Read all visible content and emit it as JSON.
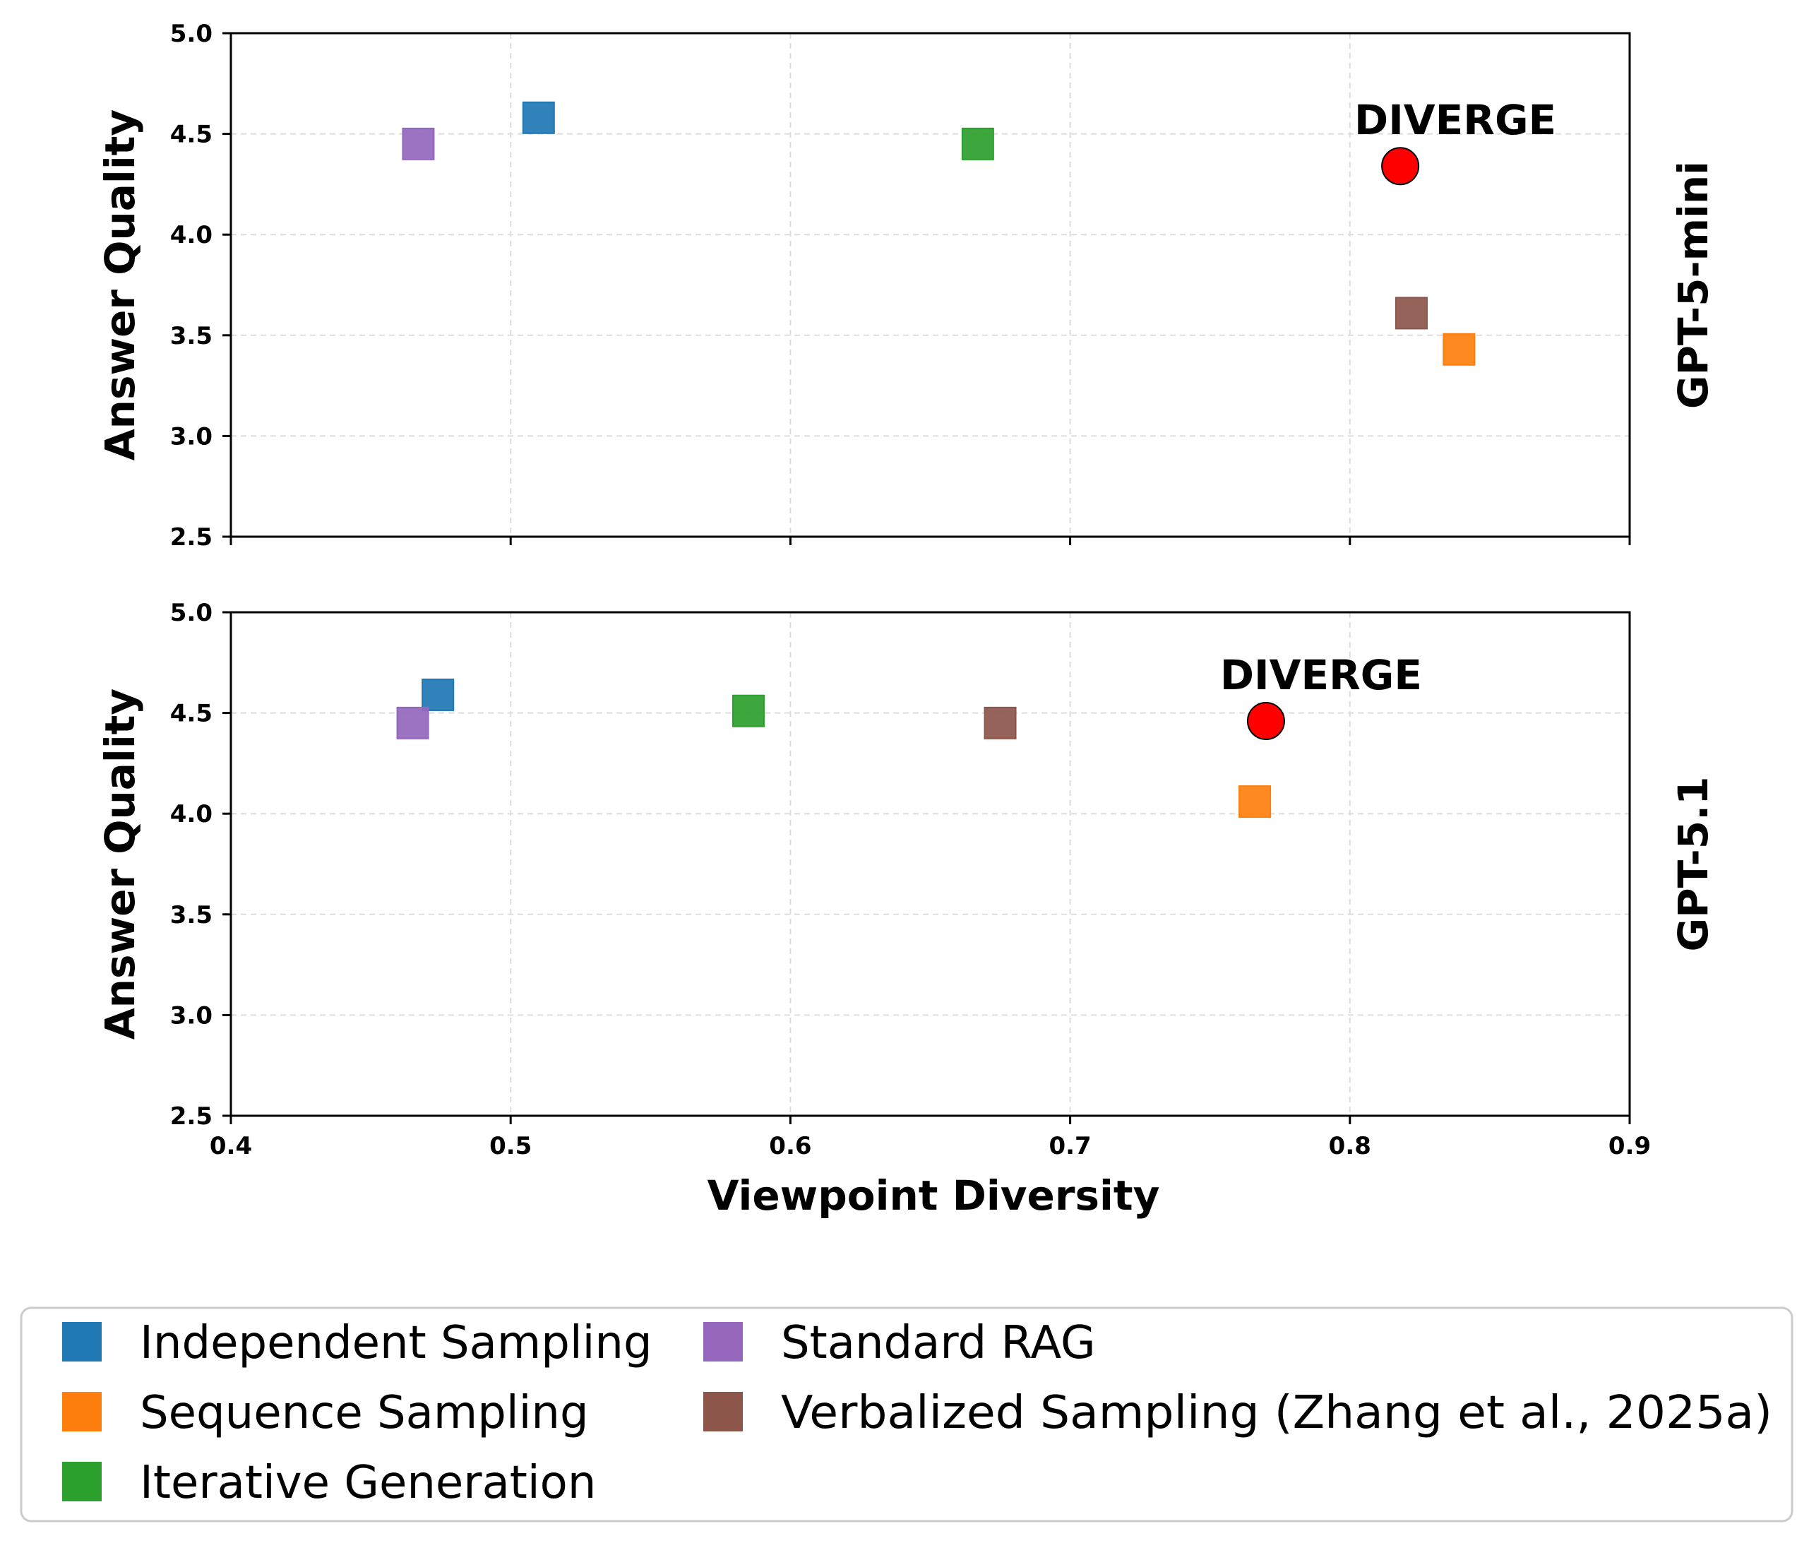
{
  "chart_data": {
    "type": "scatter",
    "xlabel": "Viewpoint Diversity",
    "ylabel": "Answer Quality",
    "xlim": [
      0.4,
      0.9
    ],
    "ylim": [
      2.5,
      5.0
    ],
    "x_ticks": [
      "0.4",
      "0.5",
      "0.6",
      "0.7",
      "0.8",
      "0.9"
    ],
    "y_ticks": [
      "2.5",
      "3.0",
      "3.5",
      "4.0",
      "4.5",
      "5.0"
    ],
    "grid": true,
    "legend_position": "bottom",
    "legend": [
      {
        "name": "Independent Sampling",
        "color": "#1f77b4"
      },
      {
        "name": "Standard RAG",
        "color": "#9467bd"
      },
      {
        "name": "Sequence Sampling",
        "color": "#ff7f0e"
      },
      {
        "name": "Verbalized Sampling (Zhang et al., 2025a)",
        "color": "#8c564b"
      },
      {
        "name": "Iterative Generation",
        "color": "#2ca02c"
      }
    ],
    "highlight": {
      "name": "DIVERGE",
      "color": "#ff0000",
      "marker": "circle"
    },
    "panels": [
      {
        "title": "GPT-5-mini",
        "points": [
          {
            "series": "Independent Sampling",
            "x": 0.51,
            "y": 4.58
          },
          {
            "series": "Sequence Sampling",
            "x": 0.839,
            "y": 3.43
          },
          {
            "series": "Iterative Generation",
            "x": 0.667,
            "y": 4.45
          },
          {
            "series": "Standard RAG",
            "x": 0.467,
            "y": 4.45
          },
          {
            "series": "Verbalized Sampling (Zhang et al., 2025a)",
            "x": 0.822,
            "y": 3.61
          }
        ],
        "diverge": {
          "label": "DIVERGE",
          "x": 0.818,
          "y": 4.34
        }
      },
      {
        "title": "GPT-5.1",
        "points": [
          {
            "series": "Independent Sampling",
            "x": 0.474,
            "y": 4.59
          },
          {
            "series": "Sequence Sampling",
            "x": 0.766,
            "y": 4.06
          },
          {
            "series": "Iterative Generation",
            "x": 0.585,
            "y": 4.51
          },
          {
            "series": "Standard RAG",
            "x": 0.465,
            "y": 4.45
          },
          {
            "series": "Verbalized Sampling (Zhang et al., 2025a)",
            "x": 0.675,
            "y": 4.45
          }
        ],
        "diverge": {
          "label": "DIVERGE",
          "x": 0.77,
          "y": 4.46
        }
      }
    ]
  }
}
